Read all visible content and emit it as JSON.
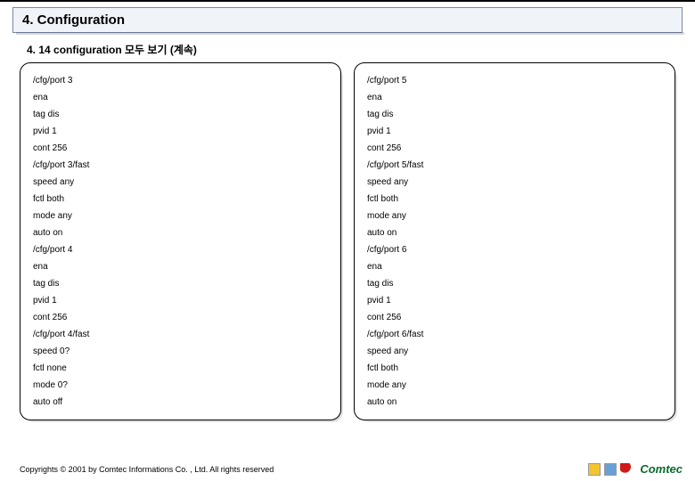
{
  "header": {
    "title": "4. Configuration",
    "subtitle": "4. 14 configuration 모두 보기 (계속)"
  },
  "panels": {
    "left": [
      "/cfg/port 3",
      "ena",
      "tag dis",
      "pvid 1",
      "cont 256",
      "/cfg/port 3/fast",
      "speed any",
      "fctl both",
      "mode any",
      "auto on",
      "/cfg/port 4",
      "ena",
      "tag dis",
      "pvid 1",
      "cont 256",
      "/cfg/port 4/fast",
      "speed 0?",
      "fctl none",
      "mode 0?",
      "auto off"
    ],
    "right": [
      "/cfg/port 5",
      "ena",
      "tag dis",
      "pvid 1",
      "cont 256",
      "/cfg/port 5/fast",
      "speed any",
      "fctl both",
      "mode any",
      "auto on",
      "/cfg/port 6",
      "ena",
      "tag dis",
      "pvid 1",
      "cont 256",
      "/cfg/port 6/fast",
      "speed any",
      "fctl both",
      "mode any",
      "auto on"
    ]
  },
  "footer": {
    "copyright": "Copyrights © 2001 by Comtec Informations Co. , Ltd. All rights reserved",
    "logo_text": "Comtec"
  }
}
